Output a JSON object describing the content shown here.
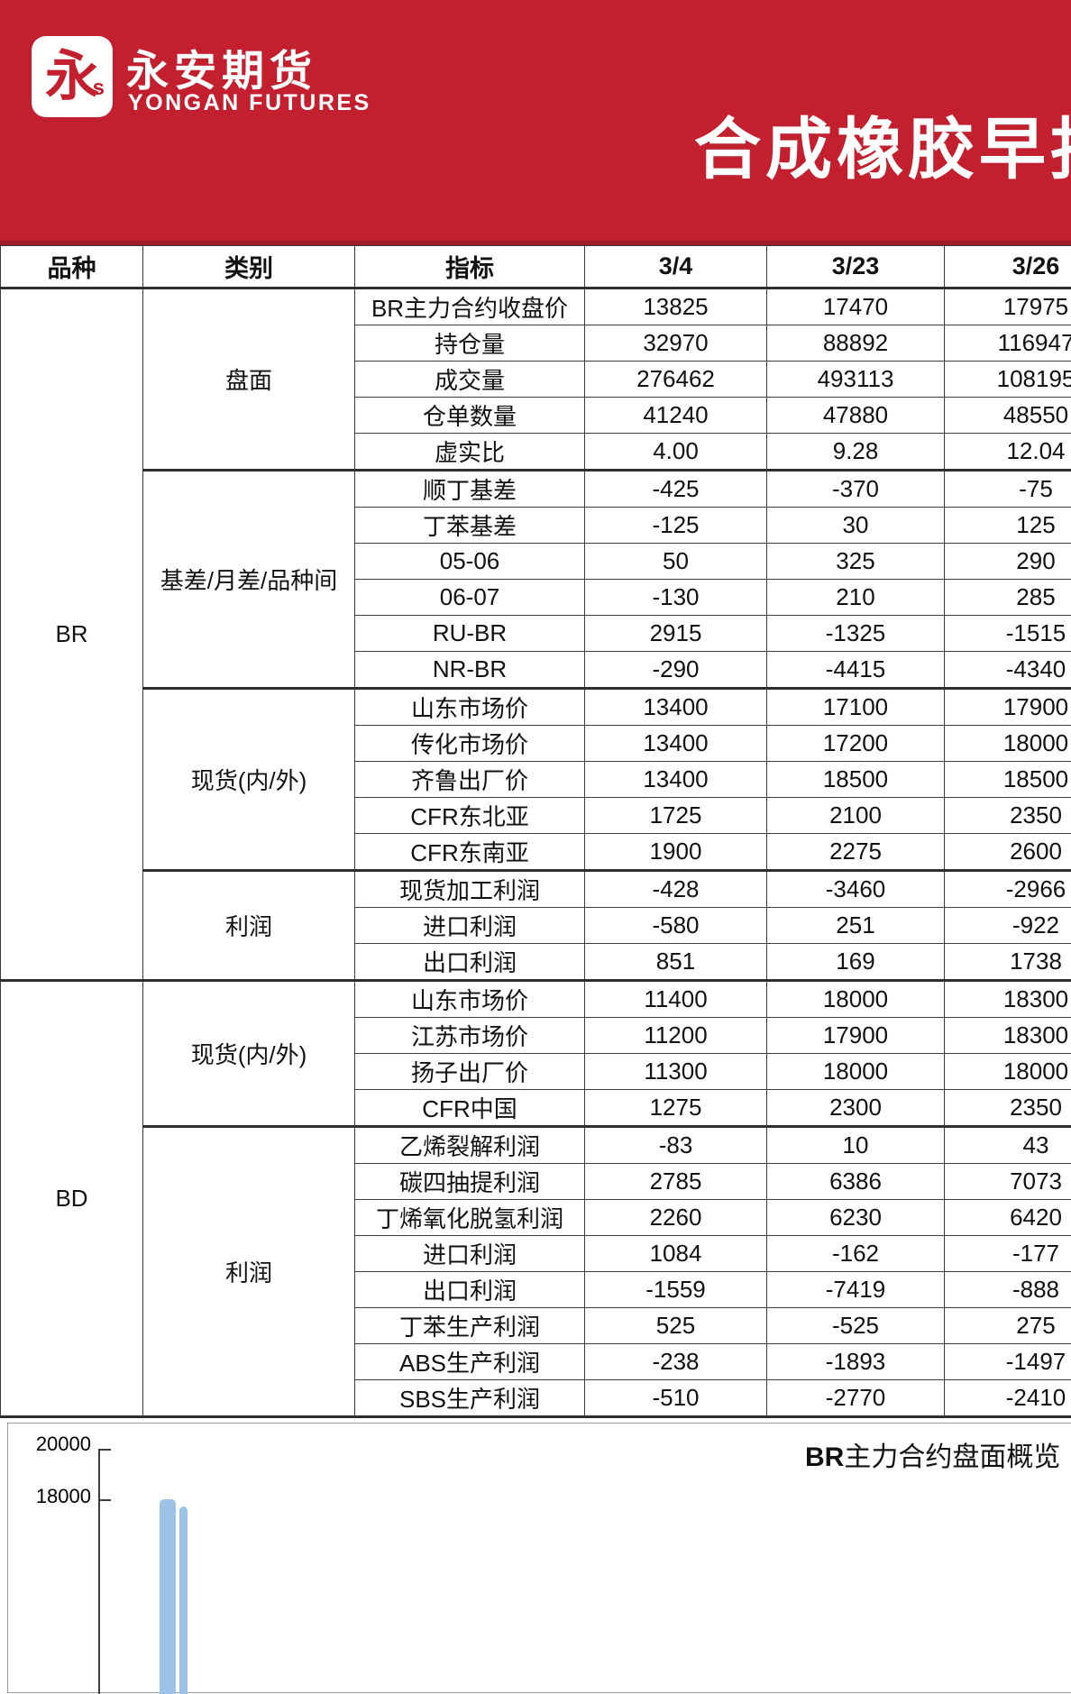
{
  "brand": {
    "logo_char": "永",
    "logo_s": "s",
    "name_cn": "永安期货",
    "name_en": "YONGAN FUTURES"
  },
  "report_title": "合成橡胶早报",
  "colors": {
    "banner_red": "#c2202f",
    "banner_red_dark": "#9e1b27",
    "series_blue": "#9cc2e5"
  },
  "table": {
    "headers": [
      "品种",
      "类别",
      "指标",
      "3/4",
      "3/23",
      "3/26"
    ],
    "groups": [
      {
        "variety": "BR",
        "sections": [
          {
            "category": "盘面",
            "rows": [
              [
                "BR主力合约收盘价",
                "13825",
                "17470",
                "17975"
              ],
              [
                "持仓量",
                "32970",
                "88892",
                "116947"
              ],
              [
                "成交量",
                "276462",
                "493113",
                "108195"
              ],
              [
                "仓单数量",
                "41240",
                "47880",
                "48550"
              ],
              [
                "虚实比",
                "4.00",
                "9.28",
                "12.04"
              ]
            ]
          },
          {
            "category": "基差/月差/品种间",
            "rows": [
              [
                "顺丁基差",
                "-425",
                "-370",
                "-75"
              ],
              [
                "丁苯基差",
                "-125",
                "30",
                "125"
              ],
              [
                "05-06",
                "50",
                "325",
                "290"
              ],
              [
                "06-07",
                "-130",
                "210",
                "285"
              ],
              [
                "RU-BR",
                "2915",
                "-1325",
                "-1515"
              ],
              [
                "NR-BR",
                "-290",
                "-4415",
                "-4340"
              ]
            ]
          },
          {
            "category": "现货(内/外)",
            "rows": [
              [
                "山东市场价",
                "13400",
                "17100",
                "17900"
              ],
              [
                "传化市场价",
                "13400",
                "17200",
                "18000"
              ],
              [
                "齐鲁出厂价",
                "13400",
                "18500",
                "18500"
              ],
              [
                "CFR东北亚",
                "1725",
                "2100",
                "2350"
              ],
              [
                "CFR东南亚",
                "1900",
                "2275",
                "2600"
              ]
            ]
          },
          {
            "category": "利润",
            "rows": [
              [
                "现货加工利润",
                "-428",
                "-3460",
                "-2966"
              ],
              [
                "进口利润",
                "-580",
                "251",
                "-922"
              ],
              [
                "出口利润",
                "851",
                "169",
                "1738"
              ]
            ]
          }
        ]
      },
      {
        "variety": "BD",
        "sections": [
          {
            "category": "现货(内/外)",
            "rows": [
              [
                "山东市场价",
                "11400",
                "18000",
                "18300"
              ],
              [
                "江苏市场价",
                "11200",
                "17900",
                "18300"
              ],
              [
                "扬子出厂价",
                "11300",
                "18000",
                "18000"
              ],
              [
                "CFR中国",
                "1275",
                "2300",
                "2350"
              ]
            ]
          },
          {
            "category": "利润",
            "rows": [
              [
                "乙烯裂解利润",
                "-83",
                "10",
                "43"
              ],
              [
                "碳四抽提利润",
                "2785",
                "6386",
                "7073"
              ],
              [
                "丁烯氧化脱氢利润",
                "2260",
                "6230",
                "6420"
              ],
              [
                "进口利润",
                "1084",
                "-162",
                "-177"
              ],
              [
                "出口利润",
                "-1559",
                "-7419",
                "-888"
              ],
              [
                "丁苯生产利润",
                "525",
                "-525",
                "275"
              ],
              [
                "ABS生产利润",
                "-238",
                "-1893",
                "-1497"
              ],
              [
                "SBS生产利润",
                "-510",
                "-2770",
                "-2410"
              ]
            ]
          }
        ]
      }
    ]
  },
  "chart_data": {
    "type": "area",
    "title_bold": "BR",
    "title_rest": "主力合约盘面概览",
    "y_ticks": [
      "20000",
      "18000"
    ],
    "note": "only top-left fragment of chart visible at page bottom edge"
  }
}
